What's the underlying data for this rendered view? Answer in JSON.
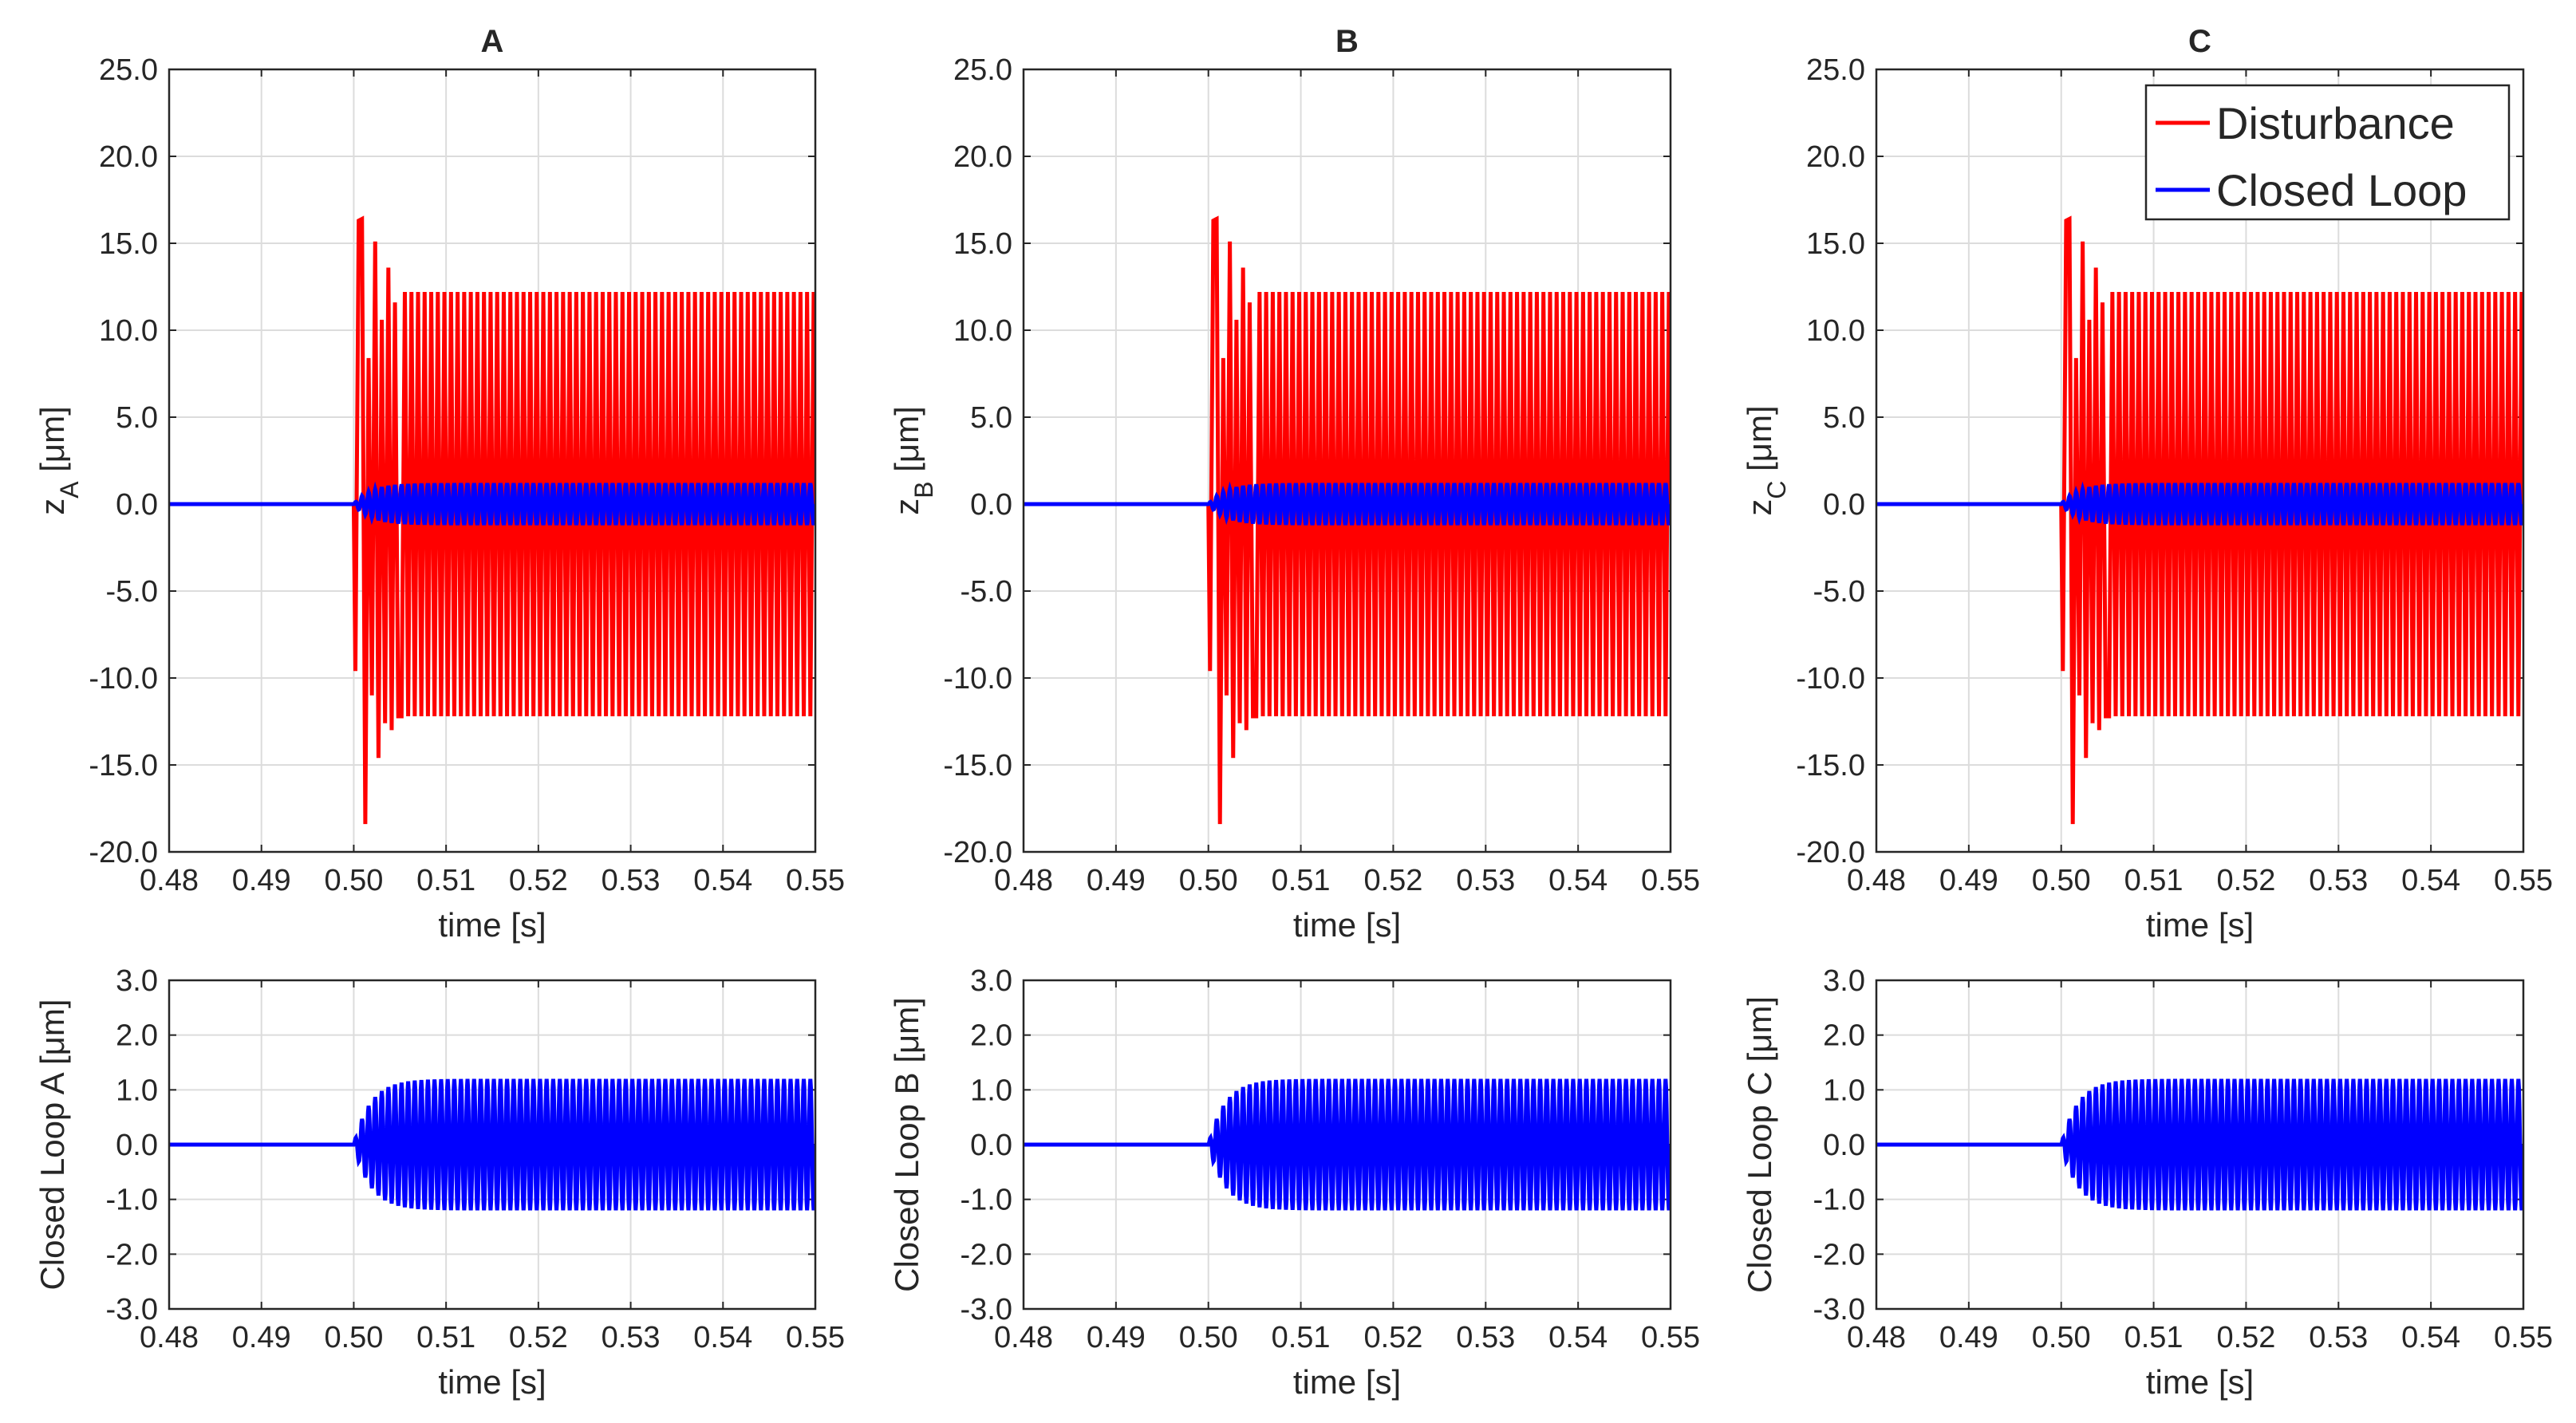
{
  "colors": {
    "disturbance": "#ff0000",
    "closed_loop": "#0000ff",
    "grid": "#dcdcdc",
    "axis": "#262626",
    "background": "#ffffff"
  },
  "legend": {
    "entries": [
      "Disturbance",
      "Closed Loop"
    ],
    "placement": "top-right of panel C"
  },
  "chart_data": [
    {
      "id": "top-A",
      "type": "line",
      "title": "A",
      "ylabel_base": "z",
      "ylabel_sub": "A",
      "ylabel_unit": " [μm]",
      "xlabel": "time [s]",
      "xlim": [
        0.48,
        0.55
      ],
      "ylim": [
        -20,
        25
      ],
      "xticks": [
        "0.48",
        "0.49",
        "0.50",
        "0.51",
        "0.52",
        "0.53",
        "0.54",
        "0.55"
      ],
      "yticks": [
        "-20.0",
        "-15.0",
        "-10.0",
        "-5.0",
        "0.0",
        "5.0",
        "10.0",
        "15.0",
        "20.0",
        "25.0"
      ],
      "series": [
        {
          "name": "Disturbance",
          "color": "#ff0000",
          "model": {
            "onset": 0.5,
            "freq": 1400,
            "steady_amp": 12.2,
            "first_peaks": [
              -9.6,
              16.3,
              16.4,
              -18.4,
              8.4,
              -11.0,
              15.1,
              -14.6,
              10.6,
              -12.6,
              13.6,
              -13.0,
              11.6,
              -12.2
            ]
          }
        },
        {
          "name": "Closed Loop",
          "color": "#0000ff",
          "model": {
            "onset": 0.5,
            "freq": 1400,
            "steady_amp": 1.2,
            "tau": 0.0018
          }
        }
      ]
    },
    {
      "id": "top-B",
      "type": "line",
      "title": "B",
      "ylabel_base": "z",
      "ylabel_sub": "B",
      "ylabel_unit": " [μm]",
      "xlabel": "time [s]",
      "xlim": [
        0.48,
        0.55
      ],
      "ylim": [
        -20,
        25
      ],
      "xticks": [
        "0.48",
        "0.49",
        "0.50",
        "0.51",
        "0.52",
        "0.53",
        "0.54",
        "0.55"
      ],
      "yticks": [
        "-20.0",
        "-15.0",
        "-10.0",
        "-5.0",
        "0.0",
        "5.0",
        "10.0",
        "15.0",
        "20.0",
        "25.0"
      ],
      "series": [
        {
          "name": "Disturbance",
          "color": "#ff0000",
          "model": {
            "onset": 0.5,
            "freq": 1400,
            "steady_amp": 12.2,
            "first_peaks": [
              -9.6,
              16.3,
              16.4,
              -18.4,
              8.4,
              -11.0,
              15.1,
              -14.6,
              10.6,
              -12.6,
              13.6,
              -13.0,
              11.6,
              -12.2
            ]
          }
        },
        {
          "name": "Closed Loop",
          "color": "#0000ff",
          "model": {
            "onset": 0.5,
            "freq": 1400,
            "steady_amp": 1.2,
            "tau": 0.0018
          }
        }
      ]
    },
    {
      "id": "top-C",
      "type": "line",
      "title": "C",
      "ylabel_base": "z",
      "ylabel_sub": "C",
      "ylabel_unit": " [μm]",
      "xlabel": "time [s]",
      "xlim": [
        0.48,
        0.55
      ],
      "ylim": [
        -20,
        25
      ],
      "xticks": [
        "0.48",
        "0.49",
        "0.50",
        "0.51",
        "0.52",
        "0.53",
        "0.54",
        "0.55"
      ],
      "yticks": [
        "-20.0",
        "-15.0",
        "-10.0",
        "-5.0",
        "0.0",
        "5.0",
        "10.0",
        "15.0",
        "20.0",
        "25.0"
      ],
      "series": [
        {
          "name": "Disturbance",
          "color": "#ff0000",
          "model": {
            "onset": 0.5,
            "freq": 1400,
            "steady_amp": 12.2,
            "first_peaks": [
              -9.6,
              16.3,
              16.4,
              -18.4,
              8.4,
              -11.0,
              15.1,
              -14.6,
              10.6,
              -12.6,
              13.6,
              -13.0,
              11.6,
              -12.2
            ]
          }
        },
        {
          "name": "Closed Loop",
          "color": "#0000ff",
          "model": {
            "onset": 0.5,
            "freq": 1400,
            "steady_amp": 1.2,
            "tau": 0.0018
          }
        }
      ]
    },
    {
      "id": "bottom-A",
      "type": "line",
      "title": "",
      "ylabel": "Closed Loop A [μm]",
      "xlabel": "time [s]",
      "xlim": [
        0.48,
        0.55
      ],
      "ylim": [
        -3,
        3
      ],
      "xticks": [
        "0.48",
        "0.49",
        "0.50",
        "0.51",
        "0.52",
        "0.53",
        "0.54",
        "0.55"
      ],
      "yticks": [
        "-3.0",
        "-2.0",
        "-1.0",
        "0.0",
        "1.0",
        "2.0",
        "3.0"
      ],
      "series": [
        {
          "name": "Closed Loop",
          "color": "#0000ff",
          "model": {
            "onset": 0.5,
            "freq": 1400,
            "steady_amp": 1.2,
            "tau": 0.0018
          }
        }
      ]
    },
    {
      "id": "bottom-B",
      "type": "line",
      "title": "",
      "ylabel": "Closed Loop B [μm]",
      "xlabel": "time [s]",
      "xlim": [
        0.48,
        0.55
      ],
      "ylim": [
        -3,
        3
      ],
      "xticks": [
        "0.48",
        "0.49",
        "0.50",
        "0.51",
        "0.52",
        "0.53",
        "0.54",
        "0.55"
      ],
      "yticks": [
        "-3.0",
        "-2.0",
        "-1.0",
        "0.0",
        "1.0",
        "2.0",
        "3.0"
      ],
      "series": [
        {
          "name": "Closed Loop",
          "color": "#0000ff",
          "model": {
            "onset": 0.5,
            "freq": 1400,
            "steady_amp": 1.2,
            "tau": 0.0018
          }
        }
      ]
    },
    {
      "id": "bottom-C",
      "type": "line",
      "title": "",
      "ylabel": "Closed Loop C [μm]",
      "xlabel": "time [s]",
      "xlim": [
        0.48,
        0.55
      ],
      "ylim": [
        -3,
        3
      ],
      "xticks": [
        "0.48",
        "0.49",
        "0.50",
        "0.51",
        "0.52",
        "0.53",
        "0.54",
        "0.55"
      ],
      "yticks": [
        "-3.0",
        "-2.0",
        "-1.0",
        "0.0",
        "1.0",
        "2.0",
        "3.0"
      ],
      "series": [
        {
          "name": "Closed Loop",
          "color": "#0000ff",
          "model": {
            "onset": 0.5,
            "freq": 1400,
            "steady_amp": 1.2,
            "tau": 0.0018
          }
        }
      ]
    }
  ]
}
